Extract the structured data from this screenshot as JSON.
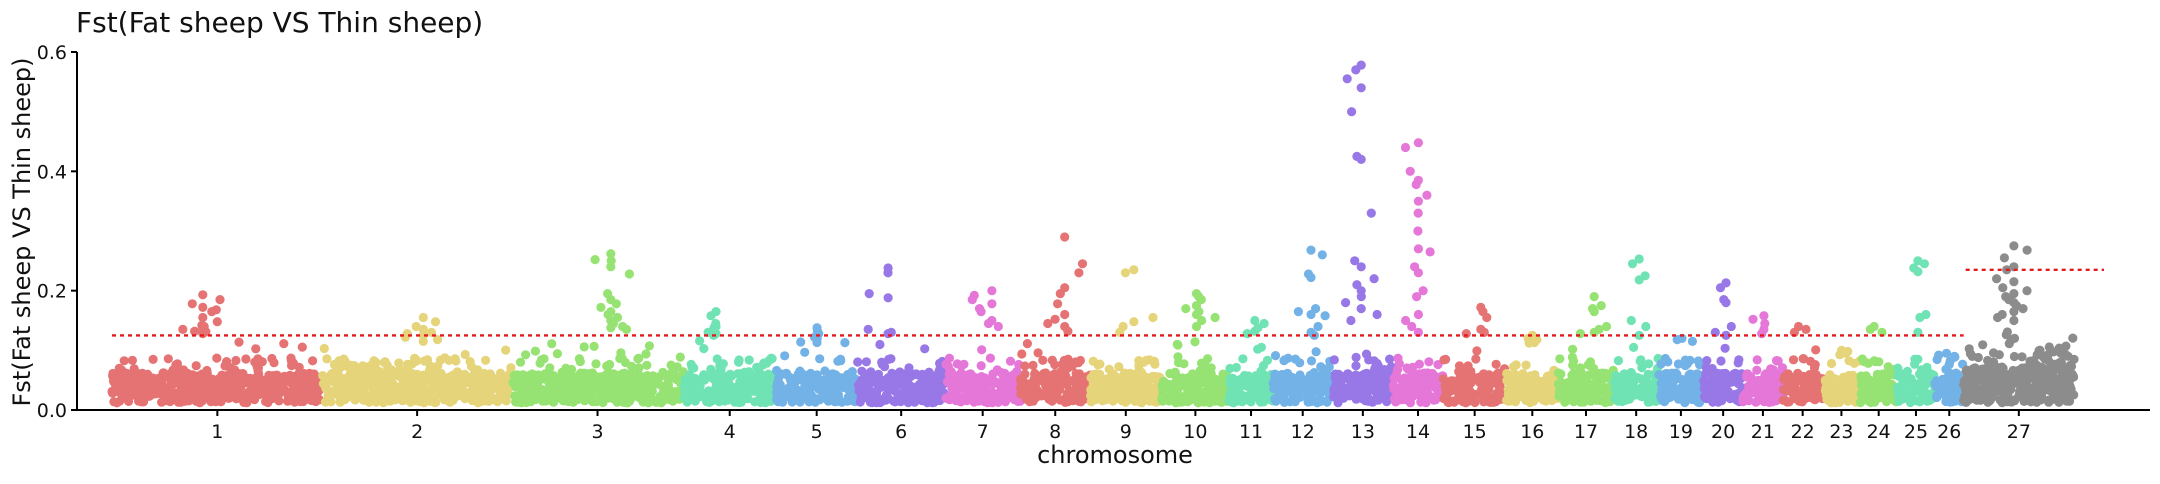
{
  "chart_data": {
    "type": "scatter",
    "title": "Fst(Fat sheep VS Thin sheep)",
    "xlabel": "chromosome",
    "ylabel": "Fst(Fat sheep VS Thin sheep)",
    "ylim": [
      0,
      0.6
    ],
    "yticks": [
      "0.0",
      "0.2",
      "0.4",
      "0.6"
    ],
    "grid": false,
    "legend": "none",
    "threshold_genomewide": 0.125,
    "threshold_chr27": 0.235,
    "threshold_color": "#e41a1c",
    "categories": [
      "1",
      "2",
      "3",
      "4",
      "5",
      "6",
      "7",
      "8",
      "9",
      "10",
      "11",
      "12",
      "13",
      "14",
      "15",
      "16",
      "17",
      "18",
      "19",
      "20",
      "21",
      "22",
      "23",
      "24",
      "25",
      "26",
      "27"
    ],
    "chr_colors": [
      "#e57373",
      "#e5d47a",
      "#96e374",
      "#70e3b4",
      "#72b2e6",
      "#9877e6",
      "#e477d8",
      "#e57373",
      "#e5d47a",
      "#96e374",
      "#70e3b4",
      "#72b2e6",
      "#9877e6",
      "#e477d8",
      "#e57373",
      "#e5d47a",
      "#96e374",
      "#70e3b4",
      "#72b2e6",
      "#9877e6",
      "#e477d8",
      "#e57373",
      "#e5d47a",
      "#96e374",
      "#70e3b4",
      "#72b2e6",
      "#8c8c8c"
    ],
    "series": [
      {
        "chr": "1",
        "values": [
          0.193,
          0.185,
          0.178,
          0.172,
          0.168,
          0.165,
          0.155,
          0.148,
          0.142,
          0.138,
          0.135,
          0.132,
          0.128,
          0.14,
          0.131
        ]
      },
      {
        "chr": "2",
        "values": [
          0.155,
          0.148,
          0.14,
          0.135,
          0.13,
          0.128,
          0.125,
          0.122,
          0.118,
          0.115
        ]
      },
      {
        "chr": "3",
        "values": [
          0.262,
          0.252,
          0.25,
          0.24,
          0.228,
          0.195,
          0.185,
          0.178,
          0.172,
          0.165,
          0.16,
          0.155,
          0.15,
          0.145,
          0.14,
          0.138,
          0.135
        ]
      },
      {
        "chr": "4",
        "values": [
          0.165,
          0.158,
          0.145,
          0.14,
          0.138,
          0.13,
          0.128,
          0.125
        ]
      },
      {
        "chr": "5",
        "values": [
          0.138,
          0.132,
          0.128,
          0.125,
          0.122,
          0.12
        ]
      },
      {
        "chr": "6",
        "values": [
          0.238,
          0.23,
          0.195,
          0.188,
          0.135,
          0.13,
          0.128
        ]
      },
      {
        "chr": "7",
        "values": [
          0.2,
          0.192,
          0.185,
          0.178,
          0.17,
          0.165,
          0.15,
          0.145,
          0.14
        ]
      },
      {
        "chr": "8",
        "values": [
          0.29,
          0.245,
          0.23,
          0.205,
          0.195,
          0.178,
          0.16,
          0.152,
          0.145,
          0.14,
          0.132
        ]
      },
      {
        "chr": "9",
        "values": [
          0.235,
          0.23,
          0.155,
          0.148,
          0.14,
          0.13
        ]
      },
      {
        "chr": "10",
        "values": [
          0.195,
          0.19,
          0.185,
          0.175,
          0.17,
          0.165,
          0.16,
          0.155,
          0.15,
          0.14
        ]
      },
      {
        "chr": "11",
        "values": [
          0.15,
          0.145,
          0.138,
          0.132,
          0.128
        ]
      },
      {
        "chr": "12",
        "values": [
          0.268,
          0.26,
          0.228,
          0.222,
          0.17,
          0.165,
          0.16,
          0.158,
          0.14,
          0.13,
          0.125
        ]
      },
      {
        "chr": "13",
        "values": [
          0.578,
          0.57,
          0.555,
          0.54,
          0.5,
          0.425,
          0.42,
          0.33,
          0.25,
          0.24,
          0.22,
          0.21,
          0.2,
          0.19,
          0.18,
          0.17,
          0.16,
          0.15
        ]
      },
      {
        "chr": "14",
        "values": [
          0.448,
          0.44,
          0.4,
          0.385,
          0.378,
          0.36,
          0.35,
          0.33,
          0.3,
          0.27,
          0.265,
          0.24,
          0.23,
          0.2,
          0.19,
          0.16,
          0.15,
          0.14,
          0.13
        ]
      },
      {
        "chr": "15",
        "values": [
          0.172,
          0.165,
          0.155,
          0.135,
          0.13,
          0.128
        ]
      },
      {
        "chr": "16",
        "values": [
          0.125,
          0.12,
          0.118
        ]
      },
      {
        "chr": "17",
        "values": [
          0.19,
          0.175,
          0.17,
          0.165,
          0.14,
          0.135,
          0.13,
          0.128
        ]
      },
      {
        "chr": "18",
        "values": [
          0.253,
          0.245,
          0.225,
          0.218,
          0.15,
          0.14,
          0.125
        ]
      },
      {
        "chr": "19",
        "values": [
          0.12,
          0.118,
          0.115
        ]
      },
      {
        "chr": "20",
        "values": [
          0.213,
          0.205,
          0.185,
          0.18,
          0.14,
          0.13,
          0.125
        ]
      },
      {
        "chr": "21",
        "values": [
          0.158,
          0.152,
          0.145,
          0.135,
          0.128
        ]
      },
      {
        "chr": "22",
        "values": [
          0.14,
          0.135,
          0.13
        ]
      },
      {
        "chr": "23",
        "values": [
          0.1,
          0.098,
          0.095
        ]
      },
      {
        "chr": "24",
        "values": [
          0.14,
          0.135,
          0.13
        ]
      },
      {
        "chr": "25",
        "values": [
          0.25,
          0.245,
          0.238,
          0.232,
          0.16,
          0.155,
          0.13
        ]
      },
      {
        "chr": "26",
        "values": [
          0.095,
          0.092,
          0.09
        ]
      },
      {
        "chr": "27",
        "values": [
          0.275,
          0.268,
          0.255,
          0.24,
          0.235,
          0.22,
          0.215,
          0.205,
          0.2,
          0.195,
          0.19,
          0.185,
          0.18,
          0.175,
          0.17,
          0.165,
          0.16,
          0.155,
          0.15
        ]
      }
    ]
  }
}
